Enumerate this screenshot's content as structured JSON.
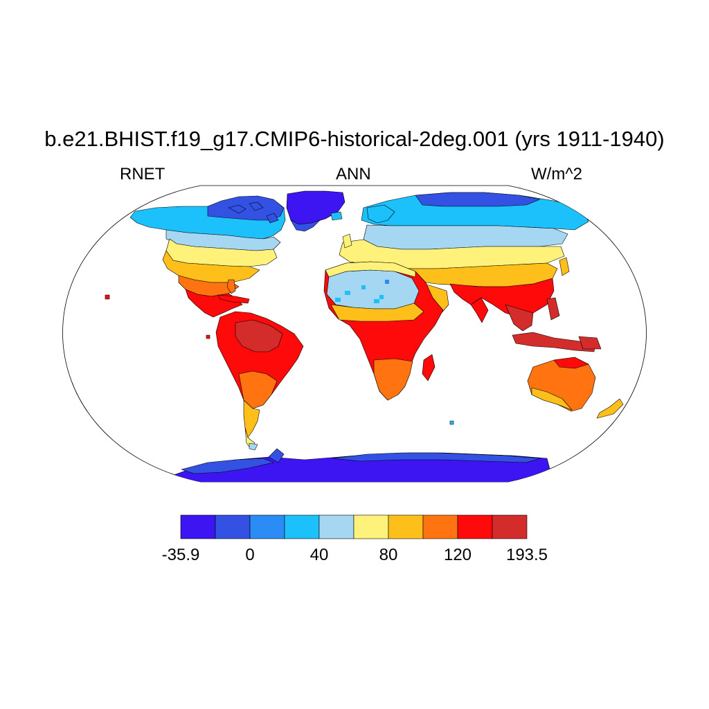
{
  "title": "b.e21.BHIST.f19_g17.CMIP6-historical-2deg.001 (yrs 1911-1940)",
  "subtitle_left": "RNET",
  "subtitle_center": "ANN",
  "subtitle_right": "W/m^2",
  "colorbar": {
    "colors": [
      "#3d14f2",
      "#3352e3",
      "#2b8cf6",
      "#1cc0fb",
      "#a5d7f2",
      "#fff27a",
      "#ffbf1a",
      "#ff7410",
      "#ff0a0a",
      "#d42b2b"
    ],
    "labels": [
      {
        "text": "-35.9",
        "boundary": 0
      },
      {
        "text": "0",
        "boundary": 2
      },
      {
        "text": "40",
        "boundary": 4
      },
      {
        "text": "80",
        "boundary": 6
      },
      {
        "text": "120",
        "boundary": 8
      },
      {
        "text": "193.5",
        "boundary": 10
      }
    ]
  },
  "map": {
    "projection": "robinson",
    "field": "RNET",
    "season": "ANN",
    "units": "W/m^2"
  }
}
